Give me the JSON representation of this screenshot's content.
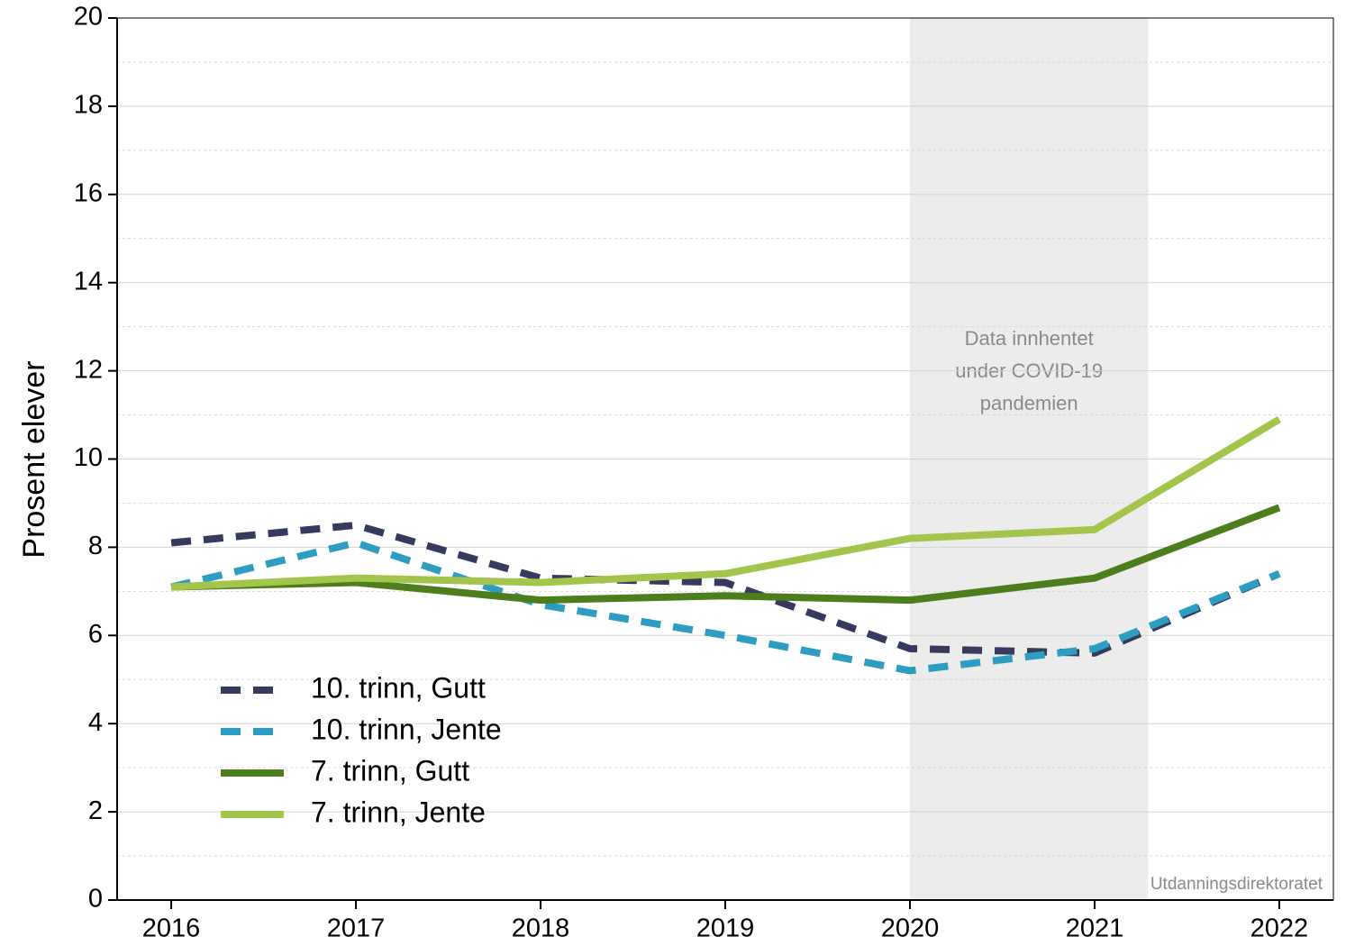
{
  "chart_data": {
    "type": "line",
    "y_label": "Prosent elever",
    "x": [
      2016,
      2017,
      2018,
      2019,
      2020,
      2021,
      2022
    ],
    "xlim": [
      2015.707,
      2022.293
    ],
    "xticks": [
      2016,
      2017,
      2018,
      2019,
      2020,
      2021,
      2022
    ],
    "ylim": [
      0,
      20
    ],
    "yticks": [
      0,
      2,
      4,
      6,
      8,
      10,
      12,
      14,
      16,
      18,
      20
    ],
    "minor_yticks": [
      1,
      3,
      5,
      7,
      9,
      11,
      13,
      15,
      17,
      19
    ],
    "grid": true,
    "legend_position": "lower left",
    "shade": {
      "range": [
        2020,
        2021.29
      ],
      "color": "#ececec",
      "label": [
        "Data innhentet",
        "under COVID-19",
        "pandemien"
      ]
    },
    "source": "Kilde: Utdanningsdirektoratet",
    "series": [
      {
        "name": "10. trinn, Gutt",
        "color": "#363a5e",
        "dashed": true,
        "values": [
          8.1,
          8.5,
          7.3,
          7.2,
          5.7,
          5.6,
          7.4
        ]
      },
      {
        "name": "10. trinn, Jente",
        "color": "#2e9dc2",
        "dashed": true,
        "values": [
          7.1,
          8.1,
          6.7,
          6.0,
          5.2,
          5.7,
          7.4
        ]
      },
      {
        "name": "7. trinn, Gutt",
        "color": "#4e7d1d",
        "dashed": false,
        "values": [
          7.1,
          7.2,
          6.8,
          6.9,
          6.8,
          7.3,
          8.9
        ]
      },
      {
        "name": "7. trinn, Jente",
        "color": "#a3c54c",
        "dashed": false,
        "values": [
          7.1,
          7.3,
          7.2,
          7.4,
          8.2,
          8.4,
          10.9
        ]
      }
    ]
  }
}
